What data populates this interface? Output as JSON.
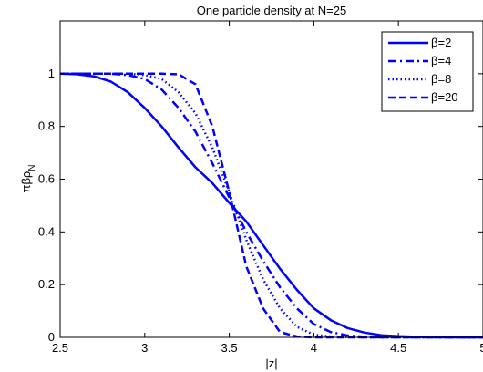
{
  "chart_data": {
    "type": "line",
    "title": "One particle density at N=25",
    "xlabel": "|z|",
    "ylabel": "πβρN",
    "ylabel_main": "πβρ",
    "ylabel_sub": "N",
    "xlim": [
      2.5,
      5
    ],
    "ylim": [
      0,
      1.2
    ],
    "x_ticks": [
      2.5,
      3,
      3.5,
      4,
      4.5,
      5
    ],
    "x_tick_labels": [
      "2.5",
      "3",
      "3.5",
      "4",
      "4.5",
      "5"
    ],
    "y_ticks": [
      0,
      0.2,
      0.4,
      0.6,
      0.8,
      1
    ],
    "y_tick_labels": [
      "0",
      "0.2",
      "0.4",
      "0.6",
      "0.8",
      "1"
    ],
    "grid": false,
    "legend_position": "top-right",
    "line_color": "#0000ff",
    "x": [
      2.5,
      2.6,
      2.7,
      2.8,
      2.9,
      3.0,
      3.1,
      3.2,
      3.3,
      3.4,
      3.5,
      3.6,
      3.7,
      3.8,
      3.9,
      4.0,
      4.1,
      4.2,
      4.3,
      4.4,
      4.5,
      4.6,
      4.7,
      4.8,
      4.9,
      5.0
    ],
    "series": [
      {
        "name": "β=2",
        "dash": "solid",
        "values": [
          1.0,
          0.998,
          0.99,
          0.97,
          0.93,
          0.87,
          0.8,
          0.72,
          0.645,
          0.585,
          0.51,
          0.44,
          0.35,
          0.26,
          0.18,
          0.11,
          0.065,
          0.035,
          0.018,
          0.008,
          0.004,
          0.002,
          0.001,
          0.0,
          0.0,
          0.0
        ]
      },
      {
        "name": "β=4",
        "dash": "dashdot",
        "values": [
          1.0,
          1.0,
          1.0,
          1.0,
          0.995,
          0.98,
          0.94,
          0.87,
          0.78,
          0.66,
          0.53,
          0.4,
          0.29,
          0.19,
          0.11,
          0.05,
          0.02,
          0.007,
          0.002,
          0.0,
          0.0,
          0.0,
          0.0,
          0.0,
          0.0,
          0.0
        ]
      },
      {
        "name": "β=8",
        "dash": "dotted",
        "values": [
          1.0,
          1.0,
          1.0,
          1.0,
          1.0,
          0.995,
          0.98,
          0.93,
          0.85,
          0.72,
          0.55,
          0.37,
          0.22,
          0.11,
          0.04,
          0.01,
          0.003,
          0.001,
          0.0,
          0.0,
          0.0,
          0.0,
          0.0,
          0.0,
          0.0,
          0.0
        ]
      },
      {
        "name": "β=20",
        "dash": "dashed",
        "values": [
          1.0,
          1.0,
          1.0,
          1.0,
          1.0,
          1.0,
          1.0,
          0.998,
          0.96,
          0.8,
          0.55,
          0.27,
          0.11,
          0.02,
          0.003,
          0.0,
          0.0,
          0.0,
          0.0,
          0.0,
          0.0,
          0.0,
          0.0,
          0.0,
          0.0,
          0.0
        ]
      }
    ]
  }
}
